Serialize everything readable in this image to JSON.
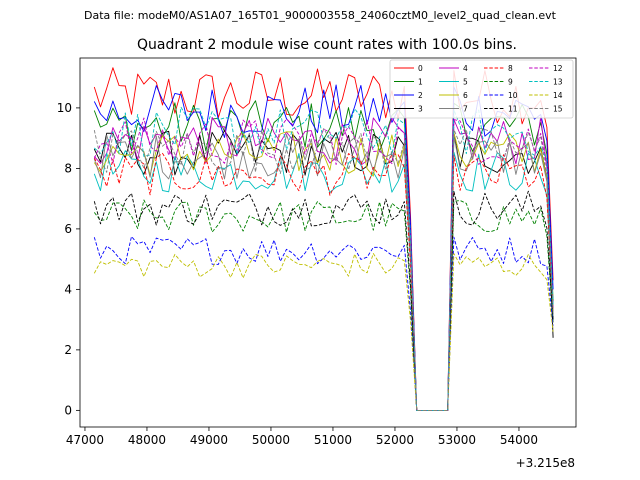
{
  "chart_data": {
    "type": "line",
    "suptitle": "Data file: modeM0/AS1A07_165T01_9000003558_24060cztM0_level2_quad_clean.evt",
    "title": "Quadrant 2 module wise count rates with 100.0s bins.",
    "xlabel": "",
    "ylabel": "",
    "x_offset_label": "+3.215e8",
    "xlim": [
      46920,
      54920
    ],
    "ylim": [
      -0.55,
      11.65
    ],
    "xticks": [
      47000,
      48000,
      49000,
      50000,
      51000,
      52000,
      53000,
      54000
    ],
    "yticks": [
      0,
      2,
      4,
      6,
      8,
      10
    ],
    "x_start": 47150,
    "x_step": 100,
    "gap_ranges": [
      [
        52350,
        52850
      ]
    ],
    "legend_columns": 4,
    "legend_placement": "top-right",
    "series": [
      {
        "name": "0",
        "color": "#ff0000",
        "dash": false,
        "level": 10.4,
        "end": 4.3
      },
      {
        "name": "1",
        "color": "#008000",
        "dash": false,
        "level": 9.4,
        "end": 3.6
      },
      {
        "name": "2",
        "color": "#0000ff",
        "dash": false,
        "level": 9.9,
        "end": 4.0
      },
      {
        "name": "3",
        "color": "#000000",
        "dash": false,
        "level": 8.5,
        "end": 2.4
      },
      {
        "name": "4",
        "color": "#bf00bf",
        "dash": false,
        "level": 8.9,
        "end": 3.3
      },
      {
        "name": "5",
        "color": "#00bfbf",
        "dash": false,
        "level": 7.9,
        "end": 3.0
      },
      {
        "name": "6",
        "color": "#bfbf00",
        "dash": false,
        "level": 8.5,
        "end": 3.2
      },
      {
        "name": "7",
        "color": "#808080",
        "dash": false,
        "level": 8.4,
        "end": 3.1
      },
      {
        "name": "8",
        "color": "#ff0000",
        "dash": true,
        "level": 7.8,
        "end": 3.3
      },
      {
        "name": "9",
        "color": "#008000",
        "dash": true,
        "level": 6.4,
        "end": 2.9
      },
      {
        "name": "10",
        "color": "#0000ff",
        "dash": true,
        "level": 5.3,
        "end": 2.8
      },
      {
        "name": "11",
        "color": "#000000",
        "dash": true,
        "level": 6.7,
        "end": 3.0
      },
      {
        "name": "12",
        "color": "#bf00bf",
        "dash": true,
        "level": 8.9,
        "end": 3.4
      },
      {
        "name": "13",
        "color": "#00bfbf",
        "dash": true,
        "level": 9.2,
        "end": 3.5
      },
      {
        "name": "14",
        "color": "#bfbf00",
        "dash": true,
        "level": 4.8,
        "end": 2.6
      },
      {
        "name": "15",
        "color": "#808080",
        "dash": true,
        "level": 8.6,
        "end": 3.2
      }
    ]
  }
}
